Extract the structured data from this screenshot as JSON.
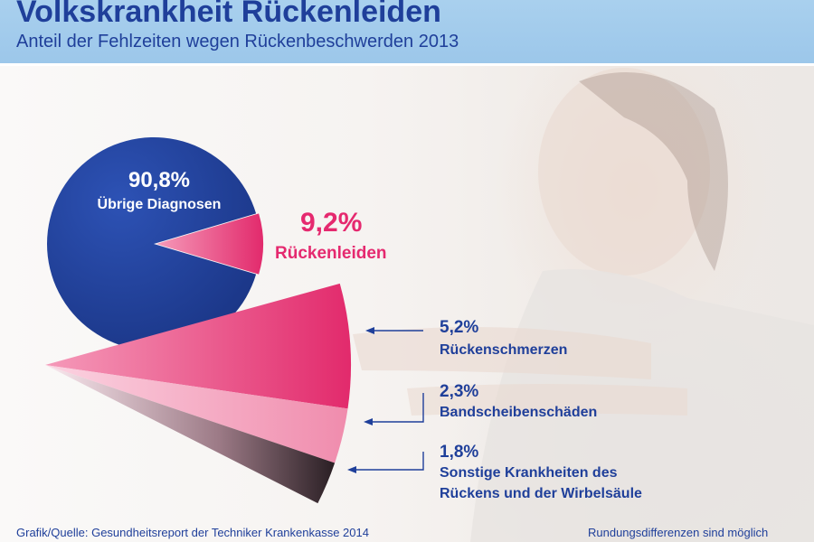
{
  "header": {
    "title": "Volkskrankheit Rückenleiden",
    "subtitle": "Anteil der Fehlzeiten wegen Rückenbeschwerden 2013"
  },
  "chart_data": {
    "type": "pie",
    "title": "Volkskrankheit Rückenleiden",
    "subtitle": "Anteil der Fehlzeiten wegen Rückenbeschwerden 2013",
    "slices": [
      {
        "label": "Übrige Diagnosen",
        "value": 90.8,
        "display": "90,8%",
        "color": "#1f3f9a"
      },
      {
        "label": "Rückenleiden",
        "value": 9.2,
        "display": "9,2%",
        "color": "#e5296f"
      }
    ],
    "breakdown": {
      "parent": "Rückenleiden",
      "items": [
        {
          "label": "Rückenschmerzen",
          "value": 5.2,
          "display": "5,2%",
          "color": "#e5296f"
        },
        {
          "label": "Bandscheibenschäden",
          "value": 2.3,
          "display": "2,3%",
          "color": "#f08cad"
        },
        {
          "label": "Sonstige Krankheiten des Rückens und der Wirbelsäule",
          "value": 1.8,
          "display": "1,8%",
          "color": "#6b5661"
        }
      ]
    }
  },
  "labels": {
    "breakdown_lines": [
      [
        "Rückenschmerzen"
      ],
      [
        "Bandscheibenschäden"
      ],
      [
        "Sonstige Krankheiten des",
        "Rückens und der Wirbelsäule"
      ]
    ]
  },
  "footer": {
    "source": "Grafik/Quelle: Gesundheitsreport der Techniker Krankenkasse 2014",
    "note": "Rundungsdifferenzen sind möglich"
  },
  "colors": {
    "header_bg": "#a9d0ee",
    "text_blue": "#1f3f9a",
    "pink": "#e5296f",
    "light_pink": "#f08cad",
    "dark_mauve": "#6b5661"
  }
}
